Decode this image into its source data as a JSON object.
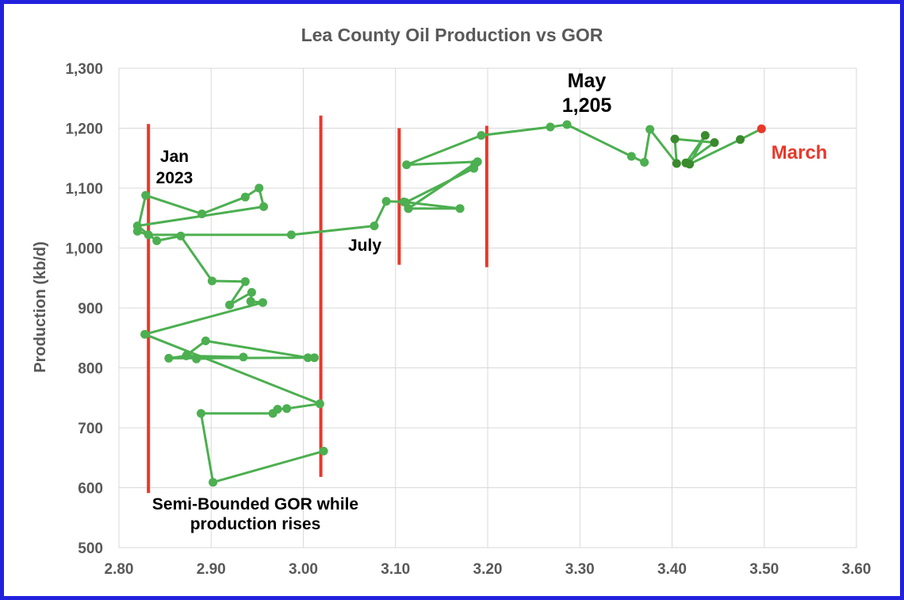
{
  "chart_data": {
    "type": "scatter",
    "title": "Lea County Oil Production vs GOR",
    "xlabel": "",
    "ylabel": "Production (kb/d)",
    "xlim": [
      2.8,
      3.6
    ],
    "ylim": [
      500,
      1300
    ],
    "x_ticks": [
      2.8,
      2.9,
      3.0,
      3.1,
      3.2,
      3.3,
      3.4,
      3.5,
      3.6
    ],
    "x_tick_labels": [
      "2.80",
      "2.90",
      "3.00",
      "3.10",
      "3.20",
      "3.30",
      "3.40",
      "3.50",
      "3.60"
    ],
    "y_ticks": [
      500,
      600,
      700,
      800,
      900,
      1000,
      1100,
      1200,
      1300
    ],
    "y_tick_labels": [
      "500",
      "600",
      "700",
      "800",
      "900",
      "1,000",
      "1,100",
      "1,200",
      "1,300"
    ],
    "grid": true,
    "line_color": "#4caf50",
    "point_color": "#4caf50",
    "recent_point_color": "#3a8a2e",
    "last_point_color": "#e8382a",
    "series": [
      {
        "points": [
          [
            3.022,
            661
          ],
          [
            2.902,
            609
          ],
          [
            2.889,
            724
          ],
          [
            2.967,
            724
          ],
          [
            2.972,
            731
          ],
          [
            2.982,
            732
          ],
          [
            3.018,
            740
          ],
          [
            2.828,
            856
          ],
          [
            2.956,
            909
          ],
          [
            2.943,
            911
          ],
          [
            2.944,
            926
          ],
          [
            2.92,
            905
          ],
          [
            2.937,
            944
          ],
          [
            2.901,
            945
          ],
          [
            2.867,
            1020
          ],
          [
            2.841,
            1012
          ],
          [
            2.82,
            1037
          ],
          [
            2.957,
            1069
          ],
          [
            2.952,
            1100
          ],
          [
            2.937,
            1085
          ],
          [
            2.89,
            1057
          ],
          [
            2.829,
            1088
          ],
          [
            2.82,
            1028
          ],
          [
            2.832,
            1022
          ],
          [
            2.987,
            1022
          ],
          [
            3.077,
            1037
          ],
          [
            3.09,
            1078
          ],
          [
            3.109,
            1077
          ],
          [
            3.17,
            1066
          ],
          [
            3.114,
            1066
          ],
          [
            3.111,
            1076
          ],
          [
            3.185,
            1133
          ],
          [
            3.186,
            1140
          ],
          [
            3.114,
            1066
          ],
          [
            3.189,
            1144
          ],
          [
            3.112,
            1139
          ],
          [
            3.193,
            1188
          ],
          [
            3.268,
            1202
          ],
          [
            3.286,
            1206
          ],
          [
            3.356,
            1153
          ],
          [
            3.37,
            1143
          ],
          [
            3.376,
            1198
          ],
          [
            3.405,
            1141
          ],
          [
            3.403,
            1182
          ],
          [
            3.446,
            1176
          ],
          [
            3.415,
            1142
          ],
          [
            3.436,
            1188
          ],
          [
            3.419,
            1140
          ],
          [
            3.474,
            1181
          ],
          [
            3.497,
            1199
          ]
        ],
        "recent_start_index": 42,
        "last_index": 49
      },
      {
        "points": [
          [
            3.012,
            817
          ],
          [
            2.854,
            816
          ],
          [
            2.873,
            820
          ],
          [
            2.935,
            818
          ],
          [
            2.884,
            815
          ],
          [
            2.874,
            822
          ],
          [
            2.894,
            845
          ],
          [
            3.005,
            817
          ]
        ]
      }
    ],
    "vertical_markers": [
      {
        "x": 2.832,
        "y": [
          591,
          1207
        ],
        "color": "#e8382a"
      },
      {
        "x": 3.019,
        "y": [
          618,
          1221
        ],
        "color": "#e8382a"
      },
      {
        "x": 3.104,
        "y": [
          972,
          1200
        ],
        "color": "#e8382a"
      },
      {
        "x": 3.199,
        "y": [
          968,
          1204
        ],
        "color": "#e8382a"
      }
    ],
    "annotations": [
      {
        "id": "jan",
        "lines": [
          "Jan",
          "2023"
        ],
        "color": "#000000"
      },
      {
        "id": "july",
        "lines": [
          "July"
        ],
        "color": "#000000"
      },
      {
        "id": "may",
        "lines": [
          "May",
          "1,205"
        ],
        "color": "#000000"
      },
      {
        "id": "march",
        "lines": [
          "March"
        ],
        "color": "#e8382a"
      },
      {
        "id": "semi",
        "lines": [
          "Semi-Bounded GOR while",
          "production rises"
        ],
        "color": "#000000"
      }
    ]
  }
}
